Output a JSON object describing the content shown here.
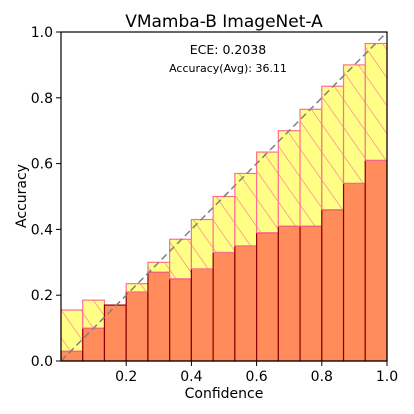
{
  "chart_data": {
    "type": "bar",
    "title": "VMamba-B  ImageNet-A",
    "xlabel": "Confidence",
    "ylabel": "Accuracy",
    "xlim": [
      0,
      1
    ],
    "ylim": [
      0,
      1
    ],
    "xticks": [
      "0.2",
      "0.4",
      "0.6",
      "0.8",
      "1.0"
    ],
    "yticks": [
      "0.0",
      "0.2",
      "0.4",
      "0.6",
      "0.8",
      "1.0"
    ],
    "annotations": {
      "ece": "ECE: 0.2038",
      "accuracy": "Accuracy(Avg): 36.11"
    },
    "bin_width": 0.0667,
    "bins_x": [
      0.0,
      0.0667,
      0.1333,
      0.2,
      0.2667,
      0.3333,
      0.4,
      0.4667,
      0.5333,
      0.6,
      0.6667,
      0.7333,
      0.8,
      0.8667,
      0.9333
    ],
    "accuracy": [
      0.03,
      0.1,
      0.17,
      0.21,
      0.27,
      0.25,
      0.28,
      0.33,
      0.35,
      0.39,
      0.41,
      0.41,
      0.46,
      0.54,
      0.61
    ],
    "confidence": [
      0.155,
      0.185,
      0.17,
      0.235,
      0.3,
      0.37,
      0.43,
      0.5,
      0.57,
      0.635,
      0.7,
      0.765,
      0.835,
      0.9,
      0.965
    ],
    "colors": {
      "accuracy_bar": "#ff8c5a",
      "gap_under": "#ffff7f",
      "gap_over": "#ffb300",
      "gap_edge": "#ff6f91",
      "bar_edge": "#8b0000",
      "diagonal": "#808080"
    },
    "grid": false,
    "legend": "none"
  }
}
